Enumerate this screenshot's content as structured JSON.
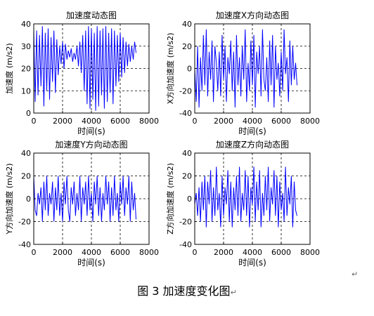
{
  "chart_data": [
    {
      "type": "line",
      "title": "加速度动态图",
      "xlabel": "时间(s)",
      "ylabel": "加速度 (m/s2)",
      "xlim": [
        0,
        8000
      ],
      "ylim": [
        0,
        40
      ],
      "xticks": [
        "0",
        "2000",
        "4000",
        "6000",
        "8000"
      ],
      "yticks": [
        "0",
        "10",
        "20",
        "30",
        "40"
      ],
      "grid": true,
      "series": [
        {
          "color": "#0000ff",
          "x": [
            0,
            100,
            200,
            300,
            400,
            500,
            600,
            700,
            800,
            900,
            1000,
            1100,
            1200,
            1300,
            1400,
            1500,
            1600,
            1700,
            1800,
            1900,
            2000,
            2100,
            2200,
            2300,
            2400,
            2500,
            2600,
            2700,
            2800,
            2900,
            3000,
            3100,
            3200,
            3300,
            3400,
            3500,
            3600,
            3700,
            3800,
            3900,
            4000,
            4100,
            4200,
            4300,
            4400,
            4500,
            4600,
            4700,
            4800,
            4900,
            5000,
            5100,
            5200,
            5300,
            5400,
            5500,
            5600,
            5700,
            5800,
            5900,
            6000,
            6100,
            6200,
            6300,
            6400,
            6500,
            6600,
            6700,
            6800,
            6900,
            7000,
            7100
          ],
          "y": [
            38,
            5,
            37,
            8,
            35,
            12,
            39,
            3,
            36,
            10,
            38,
            6,
            34,
            14,
            37,
            9,
            33,
            17,
            30,
            22,
            32,
            20,
            31,
            24,
            28,
            25,
            29,
            23,
            27,
            24,
            30,
            21,
            32,
            18,
            35,
            10,
            37,
            4,
            39,
            2,
            38,
            6,
            36,
            1,
            39,
            3,
            37,
            8,
            38,
            2,
            39,
            5,
            36,
            9,
            38,
            4,
            37,
            12,
            35,
            14,
            36,
            16,
            34,
            18,
            32,
            21,
            31,
            23,
            30,
            24,
            32,
            27
          ]
        }
      ]
    },
    {
      "type": "line",
      "title": "加速度X方向动态图",
      "xlabel": "时间(s)",
      "ylabel": "X方向加速度 (m/s2)",
      "xlim": [
        0,
        8000
      ],
      "ylim": [
        -40,
        40
      ],
      "xticks": [
        "0",
        "2000",
        "4000",
        "6000",
        "8000"
      ],
      "yticks": [
        "-40",
        "-20",
        "0",
        "20",
        "40"
      ],
      "grid": true,
      "series": [
        {
          "color": "#0000ff",
          "x": [
            0,
            100,
            200,
            300,
            400,
            500,
            600,
            700,
            800,
            900,
            1000,
            1100,
            1200,
            1300,
            1400,
            1500,
            1600,
            1700,
            1800,
            1900,
            2000,
            2100,
            2200,
            2300,
            2400,
            2500,
            2600,
            2700,
            2800,
            2900,
            3000,
            3100,
            3200,
            3300,
            3400,
            3500,
            3600,
            3700,
            3800,
            3900,
            4000,
            4100,
            4200,
            4300,
            4400,
            4500,
            4600,
            4700,
            4800,
            4900,
            5000,
            5100,
            5200,
            5300,
            5400,
            5500,
            5600,
            5700,
            5800,
            5900,
            6000,
            6100,
            6200,
            6300,
            6400,
            6500,
            6600,
            6700,
            6800,
            6900,
            7000,
            7100
          ],
          "y": [
            0,
            -30,
            20,
            -35,
            10,
            -20,
            30,
            -15,
            35,
            -25,
            15,
            -10,
            25,
            -30,
            20,
            5,
            -20,
            15,
            -25,
            30,
            -10,
            20,
            -30,
            10,
            -5,
            25,
            -20,
            15,
            -35,
            30,
            -15,
            10,
            -25,
            20,
            -10,
            35,
            -30,
            5,
            -20,
            25,
            -15,
            30,
            -35,
            15,
            -5,
            20,
            -25,
            35,
            -10,
            -20,
            10,
            -30,
            25,
            -15,
            30,
            -35,
            20,
            -10,
            5,
            -25,
            15,
            -20,
            35,
            -5,
            10,
            -30,
            25,
            -15,
            20,
            -10,
            5,
            -15
          ]
        }
      ]
    },
    {
      "type": "line",
      "title": "加速度Y方向动态图",
      "xlabel": "时间(s)",
      "ylabel": "Y方向加速度 (m/s2)",
      "xlim": [
        0,
        8000
      ],
      "ylim": [
        -40,
        40
      ],
      "xticks": [
        "0",
        "2000",
        "4000",
        "6000",
        "8000"
      ],
      "yticks": [
        "-40",
        "-20",
        "0",
        "20",
        "40"
      ],
      "grid": true,
      "series": [
        {
          "color": "#0000ff",
          "x": [
            0,
            100,
            200,
            300,
            400,
            500,
            600,
            700,
            800,
            900,
            1000,
            1100,
            1200,
            1300,
            1400,
            1500,
            1600,
            1700,
            1800,
            1900,
            2000,
            2100,
            2200,
            2300,
            2400,
            2500,
            2600,
            2700,
            2800,
            2900,
            3000,
            3100,
            3200,
            3300,
            3400,
            3500,
            3600,
            3700,
            3800,
            3900,
            4000,
            4100,
            4200,
            4300,
            4400,
            4500,
            4600,
            4700,
            4800,
            4900,
            5000,
            5100,
            5200,
            5300,
            5400,
            5500,
            5600,
            5700,
            5800,
            5900,
            6000,
            6100,
            6200,
            6300,
            6400,
            6500,
            6600,
            6700,
            6800,
            6900,
            7000,
            7100
          ],
          "y": [
            20,
            -10,
            -15,
            5,
            -5,
            10,
            -20,
            15,
            -10,
            20,
            -15,
            5,
            -5,
            15,
            -20,
            10,
            -10,
            20,
            -15,
            5,
            -20,
            15,
            -5,
            20,
            -10,
            -20,
            10,
            -5,
            15,
            -15,
            5,
            -10,
            20,
            -20,
            10,
            -5,
            15,
            -15,
            20,
            -10,
            5,
            -20,
            15,
            -5,
            20,
            -15,
            10,
            -20,
            5,
            -10,
            20,
            -5,
            15,
            -20,
            10,
            -15,
            20,
            -10,
            5,
            -20,
            15,
            -5,
            20,
            -15,
            10,
            -5,
            20,
            -20,
            15,
            -10,
            5,
            -18
          ]
        }
      ]
    },
    {
      "type": "line",
      "title": "加速度Z方向动态图",
      "xlabel": "时间(s)",
      "ylabel": "Z方向加速度 (m/s2)",
      "xlim": [
        0,
        8000
      ],
      "ylim": [
        -40,
        40
      ],
      "xticks": [
        "0",
        "2000",
        "4000",
        "6000",
        "8000"
      ],
      "yticks": [
        "-40",
        "-20",
        "0",
        "20",
        "40"
      ],
      "grid": true,
      "series": [
        {
          "color": "#0000ff",
          "x": [
            0,
            100,
            200,
            300,
            400,
            500,
            600,
            700,
            800,
            900,
            1000,
            1100,
            1200,
            1300,
            1400,
            1500,
            1600,
            1700,
            1800,
            1900,
            2000,
            2100,
            2200,
            2300,
            2400,
            2500,
            2600,
            2700,
            2800,
            2900,
            3000,
            3100,
            3200,
            3300,
            3400,
            3500,
            3600,
            3700,
            3800,
            3900,
            4000,
            4100,
            4200,
            4300,
            4400,
            4500,
            4600,
            4700,
            4800,
            4900,
            5000,
            5100,
            5200,
            5300,
            5400,
            5500,
            5600,
            5700,
            5800,
            5900,
            6000,
            6100,
            6200,
            6300,
            6400,
            6500,
            6600,
            6700,
            6800,
            6900,
            7000,
            7100
          ],
          "y": [
            -5,
            5,
            -15,
            10,
            -20,
            15,
            -10,
            20,
            -25,
            15,
            -5,
            25,
            -20,
            10,
            -15,
            28,
            -10,
            5,
            -25,
            20,
            -15,
            10,
            -5,
            25,
            -20,
            15,
            -25,
            10,
            -10,
            20,
            -15,
            28,
            -20,
            5,
            -10,
            25,
            -15,
            20,
            -25,
            10,
            -5,
            28,
            -20,
            15,
            -10,
            25,
            -25,
            5,
            -15,
            20,
            -10,
            28,
            -20,
            10,
            -5,
            25,
            -15,
            20,
            -25,
            15,
            -10,
            5,
            -20,
            28,
            -15,
            10,
            -5,
            20,
            -25,
            15,
            -10,
            -15
          ]
        }
      ]
    }
  ],
  "caption": "图 3  加速度变化图",
  "return_mark_1": "↵",
  "return_mark_2": "↵"
}
